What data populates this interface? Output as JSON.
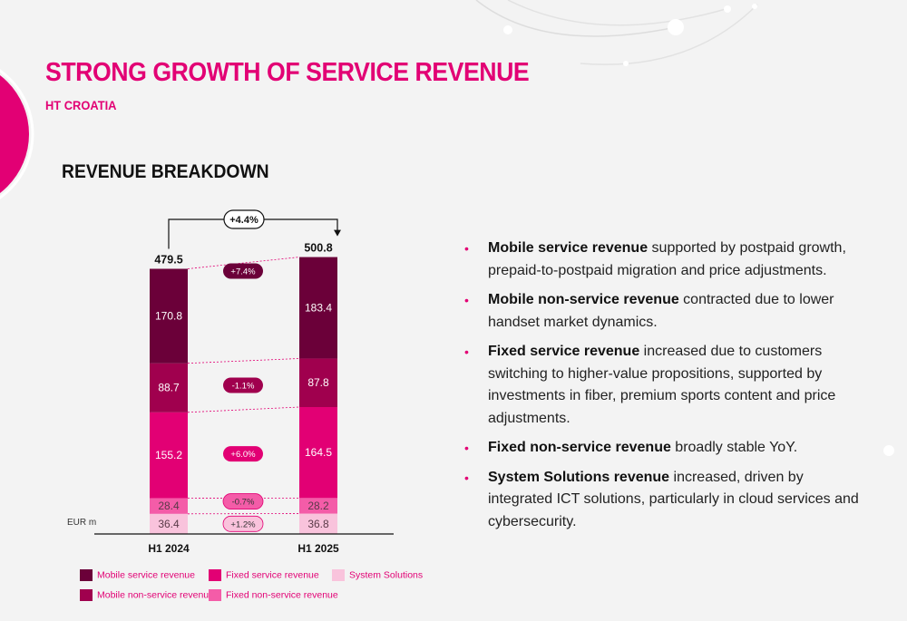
{
  "page": {
    "title": "STRONG GROWTH OF SERVICE REVENUE",
    "subtitle": "HT CROATIA",
    "chart_heading": "REVENUE BREAKDOWN"
  },
  "colors": {
    "accent": "#e20074",
    "mobile_service": "#6b0039",
    "mobile_non_service": "#a0004e",
    "fixed_service": "#e20074",
    "fixed_non_service": "#f45ca8",
    "system_solutions": "#f9c3dc"
  },
  "chart_data": {
    "type": "bar",
    "stacked": true,
    "categories": [
      "H1 2024",
      "H1 2025"
    ],
    "unit_label": "EUR m",
    "totals": [
      479.5,
      500.8
    ],
    "total_change": "+4.4%",
    "series": [
      {
        "name": "System Solutions",
        "values": [
          36.4,
          36.8
        ],
        "change": "+1.2%",
        "color": "#f9c3dc"
      },
      {
        "name": "Fixed non-service revenue",
        "values": [
          28.4,
          28.2
        ],
        "change": "-0.7%",
        "color": "#f45ca8"
      },
      {
        "name": "Fixed service revenue",
        "values": [
          155.2,
          164.5
        ],
        "change": "+6.0%",
        "color": "#e20074"
      },
      {
        "name": "Mobile non-service revenue",
        "values": [
          88.7,
          87.8
        ],
        "change": "-1.1%",
        "color": "#a0004e"
      },
      {
        "name": "Mobile service revenue",
        "values": [
          170.8,
          183.4
        ],
        "change": "+7.4%",
        "color": "#6b0039"
      }
    ],
    "legend": [
      {
        "label": "Mobile service revenue",
        "color": "#6b0039"
      },
      {
        "label": "Mobile non-service revenue",
        "color": "#a0004e"
      },
      {
        "label": "Fixed service revenue",
        "color": "#e20074"
      },
      {
        "label": "Fixed non-service revenue",
        "color": "#f45ca8"
      },
      {
        "label": "System Solutions",
        "color": "#f9c3dc"
      }
    ]
  },
  "bullets": [
    {
      "strong": "Mobile service revenue",
      "text": " supported by postpaid growth, prepaid-to-postpaid migration and price adjustments."
    },
    {
      "strong": "Mobile non-service revenue",
      "text": " contracted due to lower handset market dynamics."
    },
    {
      "strong": "Fixed service revenue",
      "text": " increased due to customers switching to higher-value propositions, supported by investments in fiber, premium sports content and price adjustments."
    },
    {
      "strong": "Fixed non-service revenue",
      "text": " broadly stable YoY."
    },
    {
      "strong": "System Solutions revenue",
      "text": " increased, driven by integrated ICT solutions, particularly in cloud services and cybersecurity."
    }
  ]
}
